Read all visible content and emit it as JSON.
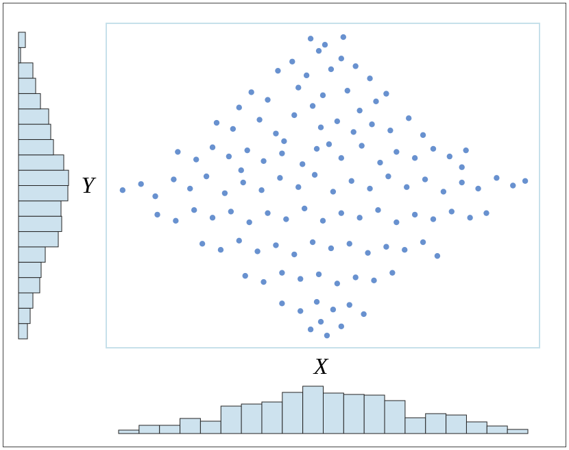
{
  "chart_data": [
    {
      "type": "scatter",
      "x_label": "X",
      "y_label": "Y",
      "color": "#6891cf",
      "xlim": [
        -0.6,
        20.6
      ],
      "ylim": [
        -0.6,
        20.6
      ],
      "x": [
        9.4,
        10.1,
        11.0,
        9.8,
        8.5,
        10.9,
        11.6,
        7.8,
        9.2,
        12.3,
        10.4,
        6.5,
        7.3,
        8.8,
        10.0,
        11.2,
        12.6,
        13.1,
        9.5,
        11.8,
        5.9,
        4.8,
        5.6,
        6.9,
        7.7,
        8.6,
        9.9,
        10.7,
        11.5,
        12.4,
        13.3,
        14.2,
        14.9,
        8.1,
        10.3,
        2.9,
        3.8,
        4.6,
        5.4,
        6.3,
        7.1,
        8.0,
        9.0,
        9.7,
        10.9,
        11.9,
        12.8,
        13.6,
        14.5,
        15.4,
        16.2,
        17.0,
        16.8,
        6.0,
        0.2,
        1.1,
        1.8,
        2.7,
        3.5,
        4.3,
        5.2,
        6.1,
        7.0,
        7.9,
        8.8,
        9.6,
        10.5,
        11.4,
        12.3,
        13.2,
        14.1,
        15.0,
        15.9,
        16.8,
        17.6,
        18.5,
        19.3,
        19.9,
        1.9,
        2.8,
        3.7,
        4.6,
        5.5,
        6.4,
        7.3,
        8.2,
        9.1,
        10.0,
        10.9,
        11.8,
        12.7,
        13.6,
        14.5,
        15.4,
        16.3,
        17.2,
        18.0,
        4.1,
        5.0,
        5.9,
        6.8,
        7.7,
        8.6,
        9.5,
        10.4,
        11.3,
        12.2,
        13.1,
        14.0,
        14.9,
        15.6,
        6.2,
        7.1,
        8.0,
        8.9,
        9.8,
        10.7,
        11.6,
        12.5,
        13.4,
        8.0,
        8.9,
        9.7,
        10.5,
        11.3,
        12.0,
        9.4,
        10.2,
        10.9,
        9.9
      ],
      "y": [
        19.6,
        19.2,
        19.7,
        18.8,
        18.1,
        18.3,
        17.8,
        17.5,
        17.2,
        17.0,
        17.6,
        16.1,
        15.6,
        16.4,
        15.9,
        16.2,
        15.5,
        16.0,
        15.2,
        14.9,
        15.1,
        14.1,
        13.7,
        14.3,
        13.4,
        14.6,
        13.8,
        14.2,
        13.5,
        14.0,
        13.6,
        14.4,
        13.3,
        12.9,
        12.7,
        12.2,
        11.7,
        12.5,
        11.9,
        12.3,
        11.6,
        12.1,
        11.4,
        12.4,
        11.8,
        12.6,
        11.5,
        12.2,
        11.8,
        12.4,
        11.9,
        12.3,
        11.2,
        11.0,
        9.7,
        10.1,
        9.3,
        10.4,
        9.8,
        10.6,
        9.5,
        10.2,
        9.7,
        10.5,
        9.9,
        10.7,
        9.6,
        10.3,
        9.8,
        10.6,
        9.9,
        10.4,
        9.6,
        10.2,
        9.8,
        10.5,
        10.0,
        10.3,
        8.1,
        7.7,
        8.4,
        7.9,
        8.3,
        7.6,
        8.2,
        7.8,
        8.5,
        7.7,
        8.2,
        7.9,
        8.4,
        7.6,
        8.1,
        7.8,
        8.3,
        7.9,
        8.2,
        6.2,
        5.8,
        6.4,
        5.7,
        6.1,
        5.5,
        6.3,
        5.9,
        6.2,
        5.6,
        6.0,
        5.8,
        6.3,
        5.4,
        4.1,
        3.7,
        4.3,
        3.9,
        4.2,
        3.6,
        4.0,
        3.8,
        4.3,
        2.3,
        1.8,
        2.4,
        1.9,
        2.2,
        1.6,
        0.6,
        0.2,
        0.8,
        1.1
      ]
    },
    {
      "type": "histogram",
      "orientation": "vertical",
      "color": "#cde2ee",
      "bins": [
        0,
        1,
        2,
        3,
        4,
        5,
        6,
        7,
        8,
        9,
        10,
        11,
        12,
        13,
        14,
        15,
        16,
        17,
        18,
        19,
        20
      ],
      "counts": [
        5,
        12,
        12,
        22,
        18,
        40,
        43,
        46,
        60,
        69,
        59,
        57,
        56,
        48,
        23,
        29,
        27,
        17,
        11,
        6
      ]
    },
    {
      "type": "histogram",
      "orientation": "horizontal",
      "color": "#cde2ee",
      "bins": [
        0,
        1,
        2,
        3,
        4,
        5,
        6,
        7,
        8,
        9,
        10,
        11,
        12,
        13,
        14,
        15,
        16,
        17,
        18,
        19,
        20
      ],
      "counts": [
        13,
        17,
        21,
        31,
        33,
        39,
        58,
        63,
        62,
        72,
        73,
        66,
        51,
        47,
        44,
        32,
        25,
        21,
        3,
        10
      ]
    }
  ]
}
